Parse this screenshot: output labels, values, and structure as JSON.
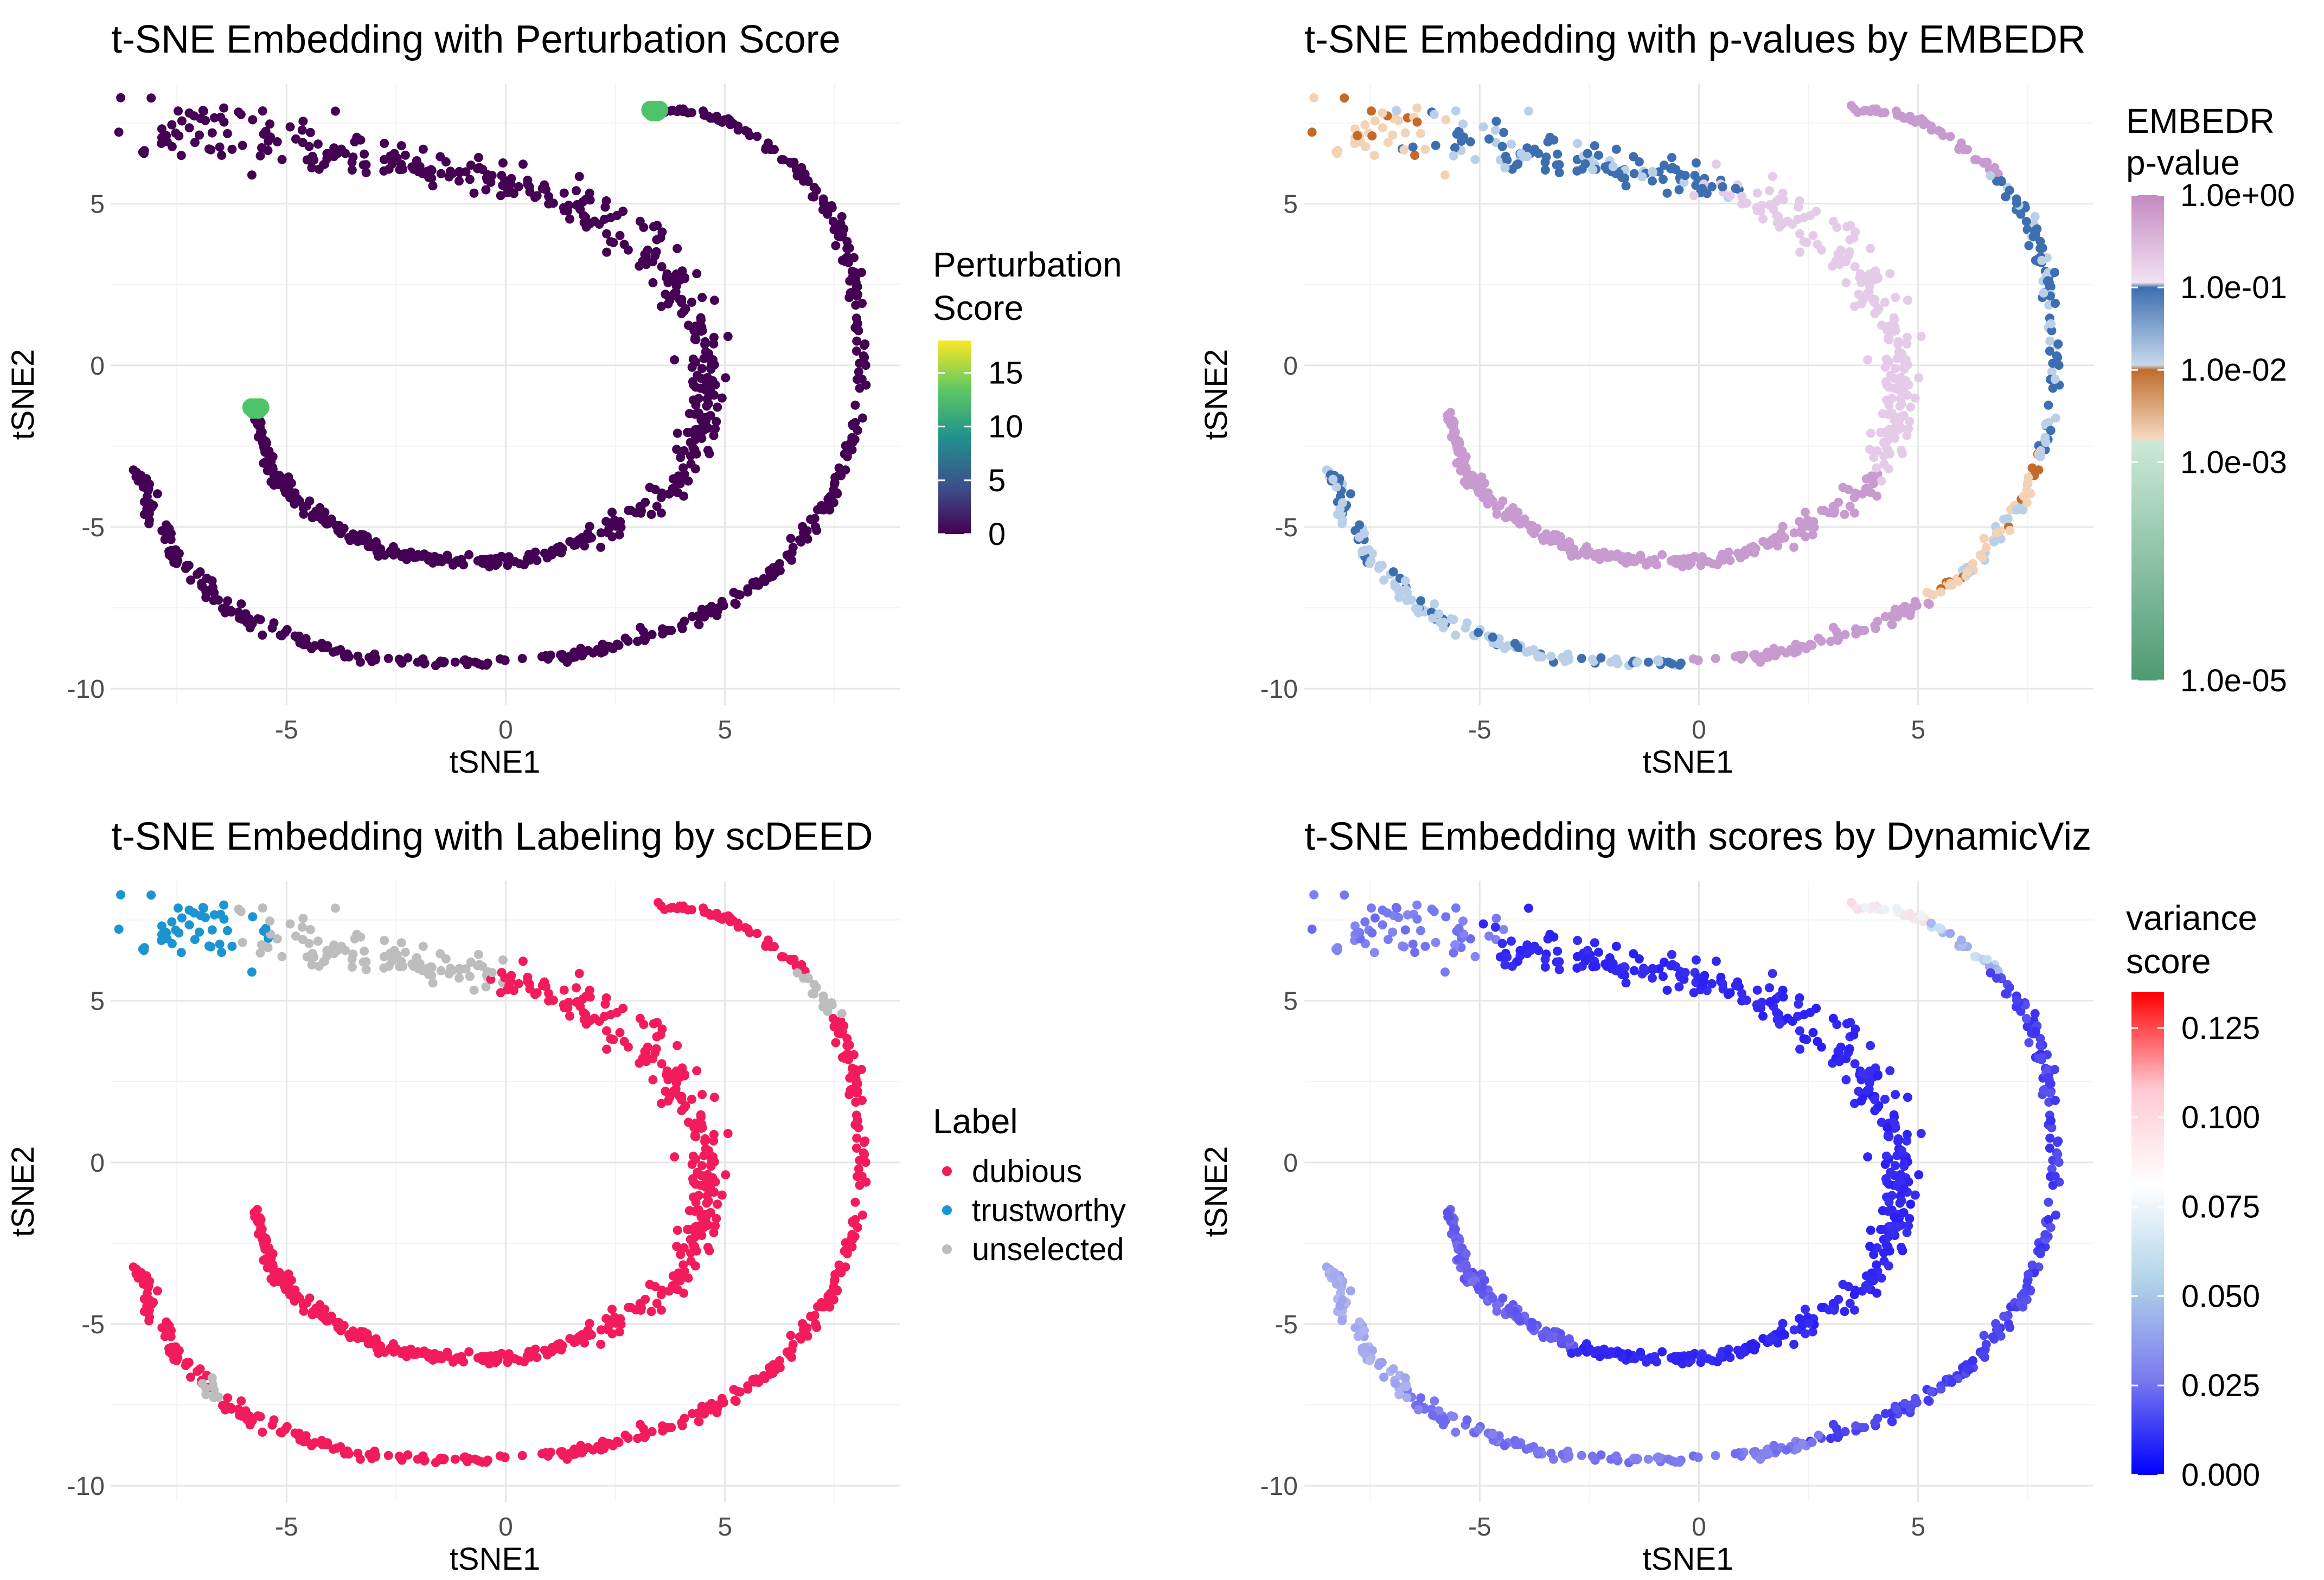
{
  "chart_data": [
    {
      "type": "scatter",
      "title": "t-SNE Embedding with Perturbation Score",
      "xlabel": "tSNE1",
      "ylabel": "tSNE2",
      "xlim": [
        -9,
        9
      ],
      "ylim": [
        -10.5,
        8.7
      ],
      "xticks": [
        -5,
        0,
        5
      ],
      "yticks": [
        -10,
        -5,
        0,
        5
      ],
      "grid": true,
      "color_encoding": "continuous",
      "point_color": "#440154",
      "highlight_points": [
        {
          "x": 3.4,
          "y": 7.9,
          "score": 10,
          "color": "#4ec36b"
        },
        {
          "x": -5.7,
          "y": -1.3,
          "score": 10,
          "color": "#4ec36b"
        }
      ],
      "legend": {
        "title": [
          "Perturbation",
          "Score"
        ],
        "position": "right",
        "colorbar": [
          "#440154",
          "#3b528b",
          "#21918c",
          "#5ec962",
          "#fde725"
        ],
        "range": [
          0,
          18
        ],
        "ticks": [
          0,
          5,
          10,
          15
        ],
        "tick_labels": [
          "0",
          "5",
          "10",
          "15"
        ]
      }
    },
    {
      "type": "scatter",
      "title": "t-SNE Embedding with p-values by EMBEDR",
      "xlabel": "tSNE1",
      "ylabel": "tSNE2",
      "xlim": [
        -9,
        9
      ],
      "ylim": [
        -10.5,
        8.7
      ],
      "xticks": [
        -5,
        0,
        5
      ],
      "yticks": [
        -10,
        -5,
        0,
        5
      ],
      "grid": true,
      "color_encoding": "log p-value",
      "colors": {
        "high_p": "#c89bd0",
        "mid_p": "#e4cce8",
        "p_0.1": "#3d6fb0",
        "p_0.01": "#b9d0e8",
        "low_p": "#c56a28",
        "lowest_p": "#f2d3b6"
      },
      "legend": {
        "title": [
          "EMBEDR",
          "p-value"
        ],
        "position": "right",
        "colorbar": [
          "#c48bc2",
          "#f1e1f0",
          "#3d6fb0",
          "#c6d8ec",
          "#c06c2c",
          "#f5d8be",
          "#cbe8d8",
          "#4e9a72"
        ],
        "tick_labels": [
          "1.0e+00",
          "1.0e-01",
          "1.0e-02",
          "1.0e-03",
          "1.0e-05"
        ]
      }
    },
    {
      "type": "scatter",
      "title": "t-SNE Embedding with Labeling by scDEED",
      "xlabel": "tSNE1",
      "ylabel": "tSNE2",
      "xlim": [
        -9,
        9
      ],
      "ylim": [
        -10.5,
        8.7
      ],
      "xticks": [
        -5,
        0,
        5
      ],
      "yticks": [
        -10,
        -5,
        0,
        5
      ],
      "grid": true,
      "color_encoding": "categorical",
      "series": [
        {
          "name": "dubious",
          "color": "#f21c5d"
        },
        {
          "name": "trustworthy",
          "color": "#1b95d1"
        },
        {
          "name": "unselected",
          "color": "#bdbdbd"
        }
      ],
      "legend": {
        "title": "Label",
        "position": "right",
        "items": [
          "dubious",
          "trustworthy",
          "unselected"
        ]
      }
    },
    {
      "type": "scatter",
      "title": "t-SNE Embedding with scores by DynamicViz",
      "xlabel": "tSNE1",
      "ylabel": "tSNE2",
      "xlim": [
        -9,
        9
      ],
      "ylim": [
        -10.5,
        8.7
      ],
      "xticks": [
        -5,
        0,
        5
      ],
      "yticks": [
        -10,
        -5,
        0,
        5
      ],
      "grid": true,
      "color_encoding": "continuous",
      "legend": {
        "title": [
          "variance",
          "score"
        ],
        "position": "right",
        "colorbar": [
          "#0000ff",
          "#7b7bee",
          "#b0d3e8",
          "#ffffff",
          "#ffc8d2",
          "#ff0000"
        ],
        "range": [
          0,
          0.135
        ],
        "ticks": [
          0,
          0.025,
          0.05,
          0.075,
          0.1,
          0.125
        ],
        "tick_labels": [
          "0.000",
          "0.025",
          "0.050",
          "0.075",
          "0.100",
          "0.125"
        ]
      }
    }
  ]
}
